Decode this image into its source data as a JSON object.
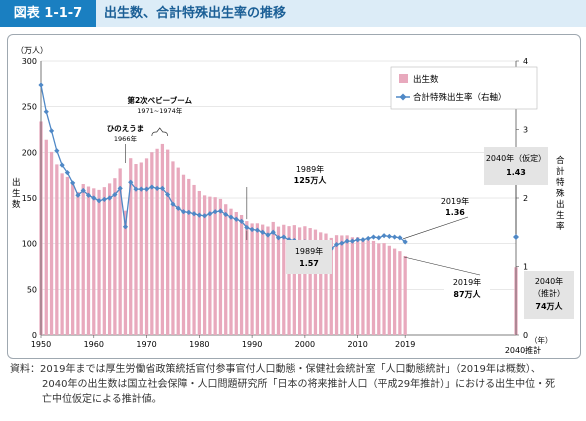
{
  "header": {
    "figure_label": "図表 1-1-7",
    "title": "出生数、合計特殊出生率の推移"
  },
  "chart_data": {
    "type": "bar+line",
    "x_start": 1950,
    "x_end": 2040,
    "x_ticks": [
      "1950",
      "1960",
      "1970",
      "1980",
      "1990",
      "2000",
      "2010",
      "2019"
    ],
    "x_unit": "（年）",
    "x_end_label": "2040推計",
    "y_left": {
      "label": [
        "出",
        "生",
        "数"
      ],
      "unit": "（万人）",
      "range": [
        0,
        300
      ],
      "ticks": [
        "0",
        "50",
        "100",
        "150",
        "200",
        "250",
        "300"
      ]
    },
    "y_right": {
      "label": [
        "合",
        "計",
        "特",
        "殊",
        "出",
        "生",
        "率"
      ],
      "range": [
        0,
        4
      ],
      "ticks": [
        "0",
        "1",
        "2",
        "3",
        "4"
      ]
    },
    "legend": {
      "position": "top-right",
      "births": "出生数",
      "tfr": "合計特殊出生率（右軸）"
    },
    "colors": {
      "bar": "#e8a9bd",
      "line": "#4f88c6",
      "marker": "#4f88c6",
      "grid": "#d0d0d0"
    },
    "series": [
      {
        "name": "出生数",
        "kind": "bar",
        "axis": "left",
        "values": [
          233.8,
          213.8,
          200.5,
          186.8,
          177.0,
          173.1,
          166.5,
          156.7,
          165.3,
          162.6,
          160.6,
          158.9,
          161.9,
          166.0,
          171.7,
          182.4,
          136.1,
          193.6,
          187.2,
          188.9,
          193.4,
          200.1,
          203.9,
          209.2,
          203.0,
          190.1,
          183.3,
          175.5,
          170.9,
          164.3,
          157.7,
          152.9,
          151.5,
          150.9,
          149.0,
          143.2,
          138.3,
          134.7,
          131.4,
          124.7,
          122.2,
          122.3,
          120.9,
          118.8,
          123.8,
          118.7,
          120.7,
          119.2,
          120.3,
          117.8,
          119.1,
          117.1,
          115.4,
          112.4,
          111.1,
          106.3,
          109.3,
          109.0,
          109.1,
          107.0,
          107.1,
          105.1,
          103.7,
          103.0,
          100.4,
          100.6,
          97.7,
          94.6,
          91.8,
          86.5
        ]
      },
      {
        "name": "出生数 2040推計",
        "kind": "bar-estimate",
        "axis": "left",
        "x": [
          2040
        ],
        "values": [
          74.2
        ]
      },
      {
        "name": "合計特殊出生率",
        "kind": "line",
        "axis": "right",
        "values": [
          3.65,
          3.26,
          2.98,
          2.69,
          2.48,
          2.37,
          2.22,
          2.04,
          2.11,
          2.04,
          2.0,
          1.96,
          1.98,
          2.0,
          2.05,
          2.14,
          1.58,
          2.23,
          2.13,
          2.13,
          2.13,
          2.16,
          2.14,
          2.14,
          2.05,
          1.91,
          1.85,
          1.8,
          1.79,
          1.77,
          1.75,
          1.74,
          1.77,
          1.8,
          1.81,
          1.76,
          1.72,
          1.69,
          1.66,
          1.57,
          1.54,
          1.53,
          1.5,
          1.46,
          1.5,
          1.42,
          1.43,
          1.39,
          1.38,
          1.34,
          1.36,
          1.33,
          1.32,
          1.29,
          1.29,
          1.26,
          1.32,
          1.34,
          1.37,
          1.37,
          1.39,
          1.39,
          1.41,
          1.43,
          1.42,
          1.45,
          1.44,
          1.43,
          1.42,
          1.36
        ]
      },
      {
        "name": "合計特殊出生率 2040仮定",
        "kind": "point-estimate",
        "axis": "right",
        "x": [
          2040
        ],
        "values": [
          1.43
        ]
      }
    ],
    "annotations": {
      "hinoe_title": "ひのえうま",
      "hinoe_year": "1966年",
      "baby_boom_title": "第2次ベビーブーム",
      "baby_boom_years": "1971~1974年",
      "b1989_year": "1989年",
      "b1989_value": "125万人",
      "r1989_year": "1989年",
      "r1989_value": "1.57",
      "r2019_year": "2019年",
      "r2019_value": "1.36",
      "r2040_title": "2040年（仮定）",
      "r2040_value": "1.43",
      "b2019_year": "2019年",
      "b2019_value": "87万人",
      "b2040_year": "2040年",
      "b2040_note": "（推計）",
      "b2040_value": "74万人"
    }
  },
  "source": {
    "line1": "資料：2019年までは厚生労働省政策統括官付参事官付人口動態・保健社会統計室「人口動態統計」（2019年は概数）、",
    "line2": "2040年の出生数は国立社会保障・人口問題研究所「日本の将来推計人口（平成29年推計）」における出生中位・死",
    "line3": "亡中位仮定による推計値。"
  }
}
